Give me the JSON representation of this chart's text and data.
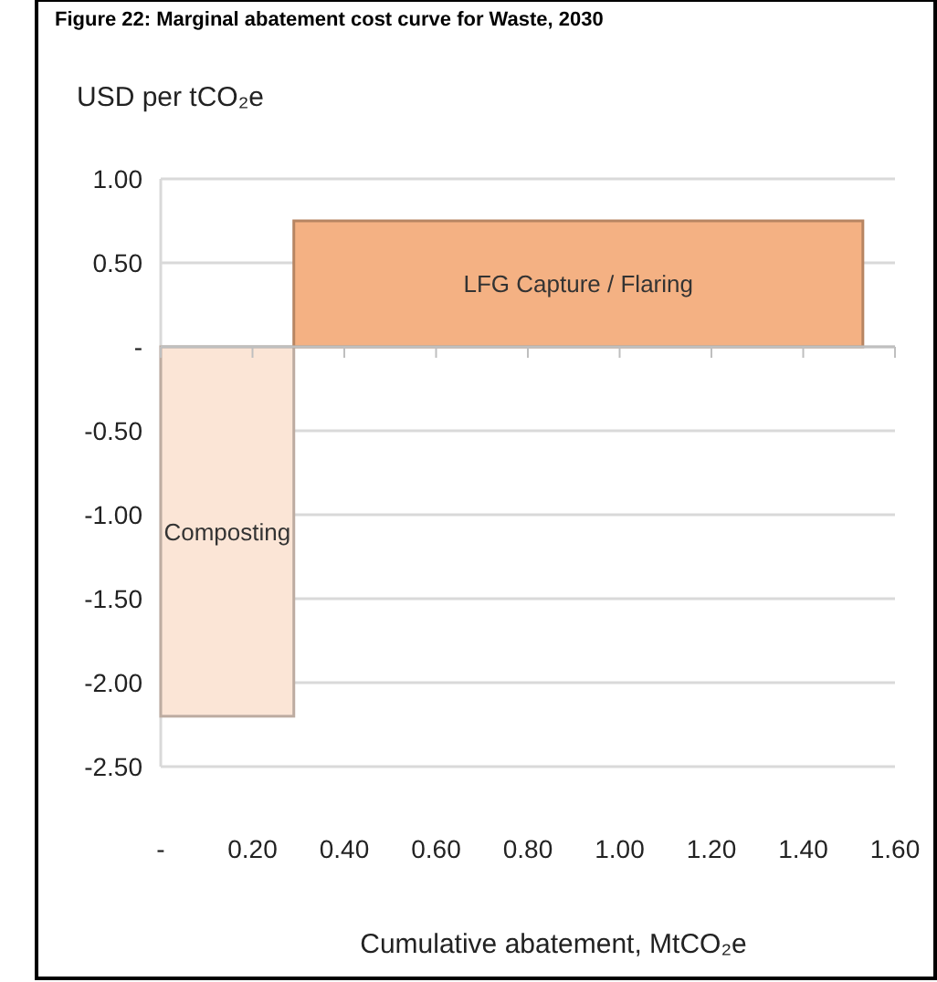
{
  "chart_data": {
    "type": "histogram",
    "title": "Figure 22: Marginal abatement cost curve for Waste, 2030",
    "ylabel": "USD per tCO₂e",
    "xlabel": "Cumulative abatement, MtCO₂e",
    "bins": [
      0,
      0.29,
      1.53
    ],
    "values": [
      -2.2,
      0.75
    ],
    "colors": [
      "#fbe5d6",
      "#f4b183"
    ],
    "xlim": [
      0,
      1.6
    ],
    "xticks": [
      {
        "value": 0,
        "label": "-"
      },
      {
        "value": 0.2,
        "label": "0.20"
      },
      {
        "value": 0.4,
        "label": "0.40"
      },
      {
        "value": 0.6,
        "label": "0.60"
      },
      {
        "value": 0.8,
        "label": "0.80"
      },
      {
        "value": 1,
        "label": "1.00"
      },
      {
        "value": 1.2,
        "label": "1.20"
      },
      {
        "value": 1.4,
        "label": "1.40"
      },
      {
        "value": 1.6,
        "label": "1.60"
      }
    ],
    "ylim": [
      -2.5,
      1
    ],
    "yticks": [
      {
        "value": 1,
        "label": "1.00"
      },
      {
        "value": 0.5,
        "label": "0.50"
      },
      {
        "value": 0,
        "label": "-"
      },
      {
        "value": -0.5,
        "label": "-0.50"
      },
      {
        "value": -1,
        "label": "-1.00"
      },
      {
        "value": -1.5,
        "label": "-1.50"
      },
      {
        "value": -2,
        "label": "-2.00"
      },
      {
        "value": -2.5,
        "label": "-2.50"
      }
    ],
    "grid": "y",
    "annotations": [
      "Composting",
      "LFG Capture / Flaring"
    ]
  }
}
